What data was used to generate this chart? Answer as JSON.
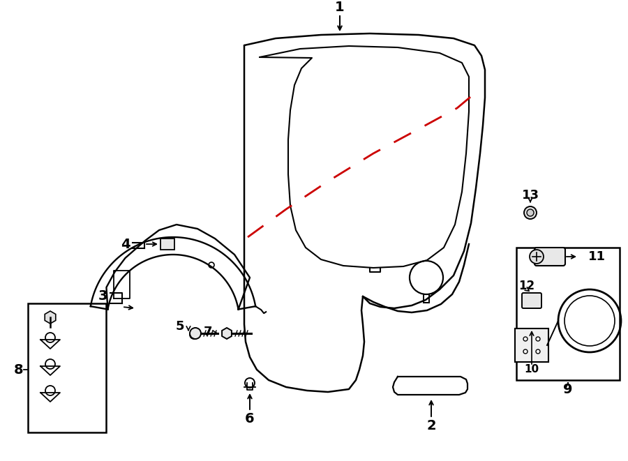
{
  "bg_color": "#ffffff",
  "line_color": "#000000",
  "red_dash_color": "#cc0000",
  "figsize": [
    9.0,
    6.61
  ],
  "dpi": 100
}
